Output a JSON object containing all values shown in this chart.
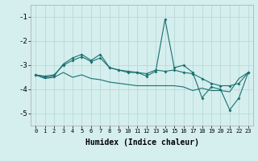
{
  "xlabel": "Humidex (Indice chaleur)",
  "x": [
    0,
    1,
    2,
    3,
    4,
    5,
    6,
    7,
    8,
    9,
    10,
    11,
    12,
    13,
    14,
    15,
    16,
    17,
    18,
    19,
    20,
    21,
    22,
    23
  ],
  "line_jagged": [
    -3.4,
    -3.5,
    -3.45,
    -2.95,
    -2.7,
    -2.55,
    -2.8,
    -2.55,
    -3.1,
    -3.2,
    -3.3,
    -3.3,
    -3.45,
    -3.25,
    -1.1,
    -3.1,
    -3.0,
    -3.3,
    -4.35,
    -3.9,
    -4.0,
    -4.85,
    -4.35,
    -3.3
  ],
  "line_mid": [
    -3.4,
    -3.45,
    -3.4,
    -3.0,
    -2.8,
    -2.65,
    -2.85,
    -2.7,
    -3.1,
    -3.2,
    -3.25,
    -3.3,
    -3.35,
    -3.2,
    -3.25,
    -3.2,
    -3.3,
    -3.35,
    -3.55,
    -3.75,
    -3.85,
    -3.85,
    -3.75,
    -3.3
  ],
  "line_lower": [
    -3.4,
    -3.55,
    -3.5,
    -3.3,
    -3.5,
    -3.4,
    -3.55,
    -3.6,
    -3.7,
    -3.75,
    -3.8,
    -3.85,
    -3.85,
    -3.85,
    -3.85,
    -3.85,
    -3.9,
    -4.05,
    -3.95,
    -4.05,
    -4.05,
    -4.1,
    -3.55,
    -3.3
  ],
  "line_color": "#1b7070",
  "bg_color": "#d5eeee",
  "grid_color": "#b5d5d5",
  "ylim": [
    -5.5,
    -0.5
  ],
  "yticks": [
    -5,
    -4,
    -3,
    -2,
    -1
  ],
  "xlim": [
    -0.5,
    23.5
  ]
}
